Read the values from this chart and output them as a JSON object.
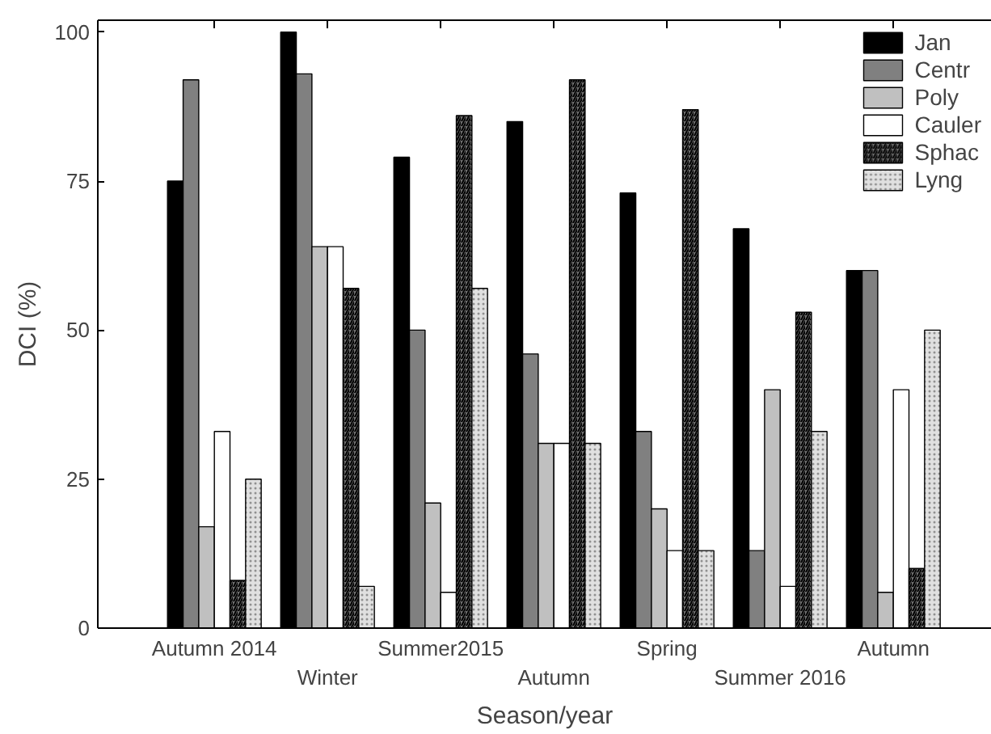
{
  "chart_data": {
    "type": "bar",
    "xlabel": "Season/year",
    "ylabel": "DCI (%)",
    "categories": [
      "Autumn 2014",
      "Winter",
      "Summer2015",
      "Autumn",
      "Spring",
      "Summer 2016",
      "Autumn"
    ],
    "series": [
      {
        "name": "Jan",
        "color": "#000000",
        "values": [
          75,
          100,
          79,
          85,
          73,
          67,
          60
        ]
      },
      {
        "name": "Centr",
        "color": "#808080",
        "values": [
          92,
          93,
          50,
          46,
          33,
          13,
          60
        ]
      },
      {
        "name": "Poly",
        "color": "#c0c0c0",
        "values": [
          17,
          64,
          21,
          31,
          20,
          40,
          6
        ]
      },
      {
        "name": "Cauler",
        "color": "#ffffff",
        "values": [
          33,
          64,
          6,
          31,
          13,
          7,
          40
        ]
      },
      {
        "name": "Sphac",
        "color": "#707070",
        "values": [
          8,
          57,
          86,
          92,
          87,
          53,
          10
        ]
      },
      {
        "name": "Lyng",
        "color": "#e0e0e0",
        "values": [
          25,
          7,
          57,
          31,
          13,
          33,
          50
        ]
      }
    ],
    "ylim": [
      0,
      102
    ],
    "yticks": [
      0,
      25,
      50,
      75,
      100
    ],
    "grid": false,
    "legend": "top right"
  }
}
